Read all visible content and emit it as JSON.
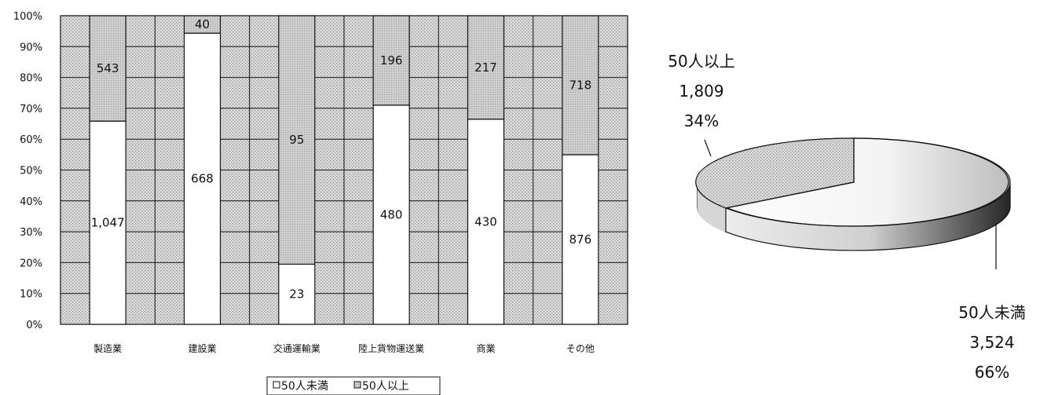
{
  "chart_data": [
    {
      "type": "bar",
      "stacked": "percent",
      "categories": [
        "製造業",
        "建設業",
        "交通運輸業",
        "陸上貨物運送業",
        "商業",
        "その他"
      ],
      "series": [
        {
          "name": "50人未満",
          "values": [
            1047,
            668,
            23,
            480,
            430,
            876
          ],
          "labels": [
            "1,047",
            "668",
            "23",
            "480",
            "430",
            "876"
          ],
          "color": "#ffffff"
        },
        {
          "name": "50人以上",
          "values": [
            543,
            40,
            95,
            196,
            217,
            718
          ],
          "labels": [
            "543",
            "40",
            "95",
            "196",
            "217",
            "718"
          ],
          "color": "#c8c8c8"
        }
      ],
      "y_ticks": [
        "0%",
        "10%",
        "20%",
        "30%",
        "40%",
        "50%",
        "60%",
        "70%",
        "80%",
        "90%",
        "100%"
      ],
      "ylim": [
        0,
        100
      ],
      "grid": true,
      "legend": "bottom"
    },
    {
      "type": "pie",
      "slices": [
        {
          "name": "50人以上",
          "value": 1809,
          "value_label": "1,809",
          "percent_label": "34%"
        },
        {
          "name": "50人未満",
          "value": 3524,
          "value_label": "3,524",
          "percent_label": "66%"
        }
      ]
    }
  ]
}
